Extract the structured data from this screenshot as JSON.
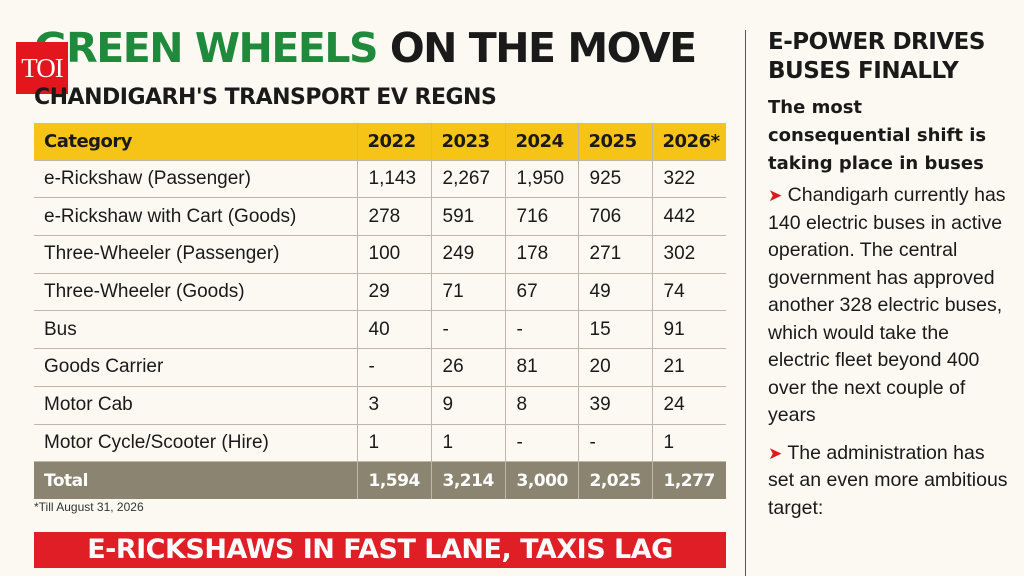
{
  "logo": {
    "text": "TOI"
  },
  "headline": {
    "green": "GREEN WHEELS",
    "dark": "ON THE MOVE"
  },
  "subhead": "CHANDIGARH'S TRANSPORT EV REGNS",
  "chart_data": {
    "type": "table",
    "columns": [
      "Category",
      "2022",
      "2023",
      "2024",
      "2025",
      "2026*"
    ],
    "rows": [
      [
        "e-Rickshaw (Passenger)",
        "1,143",
        "2,267",
        "1,950",
        "925",
        "322"
      ],
      [
        "e-Rickshaw with Cart (Goods)",
        "278",
        "591",
        "716",
        "706",
        "442"
      ],
      [
        "Three-Wheeler (Passenger)",
        "100",
        "249",
        "178",
        "271",
        "302"
      ],
      [
        "Three-Wheeler (Goods)",
        "29",
        "71",
        "67",
        "49",
        "74"
      ],
      [
        "Bus",
        "40",
        "-",
        "-",
        "15",
        "91"
      ],
      [
        "Goods Carrier",
        "-",
        "26",
        "81",
        "20",
        "21"
      ],
      [
        "Motor Cab",
        "3",
        "9",
        "8",
        "39",
        "24"
      ],
      [
        "Motor Cycle/Scooter (Hire)",
        "1",
        "1",
        "-",
        "-",
        "1"
      ]
    ],
    "total": [
      "Total",
      "1,594",
      "3,214",
      "3,000",
      "2,025",
      "1,277"
    ]
  },
  "footnote": "*Till August 31, 2026",
  "bottom_banner": "E-RICKSHAWS IN FAST LANE, TAXIS LAG",
  "sidebar": {
    "title": "E-POWER DRIVES BUSES FINALLY",
    "lead": "The most consequential shift is taking place in buses",
    "bullet_icon": "➤",
    "para1": "Chandigarh currently has 140 electric buses in active operation. The central government has approved another 328 electric buses, which would take the electric fleet beyond 400 over the next couple of years",
    "para2": "The administration has set an even more ambitious target:"
  },
  "colors": {
    "header_yellow": "#f6c417",
    "total_row": "#8b8470",
    "brand_red": "#e2161c",
    "headline_green": "#1f8a3c"
  }
}
